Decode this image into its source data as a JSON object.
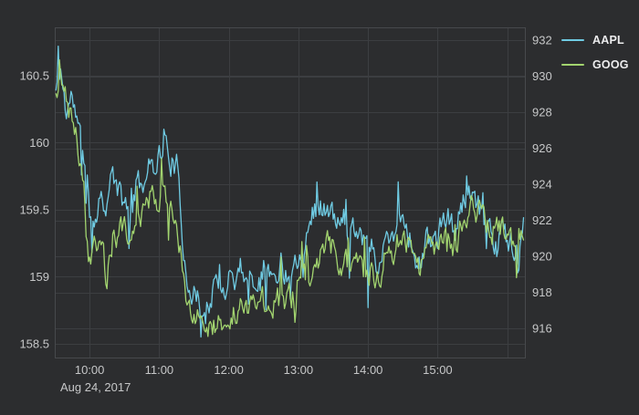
{
  "colors": {
    "background": "#2c2d2f",
    "grid": "#3c3e41",
    "plot_border": "#47494c",
    "tick_text": "#c6c7c8",
    "legend_text": "#ededee",
    "aapl_line": "#6fcbe3",
    "goog_line": "#a2d46f"
  },
  "chart_data": {
    "type": "line",
    "title": "",
    "date_label": "Aug 24, 2017",
    "x_domain": [
      "09:30",
      "16:16"
    ],
    "x_ticks": [
      "10:00",
      "11:00",
      "12:00",
      "13:00",
      "14:00",
      "15:00"
    ],
    "x_grid": [
      "10:00",
      "11:00",
      "12:00",
      "13:00",
      "14:00",
      "15:00",
      "16:00"
    ],
    "ylim_left": [
      158.39,
      160.86
    ],
    "ylim_right": [
      914.33,
      932.71
    ],
    "yticks_left": {
      "labels": [
        "158.5",
        "159",
        "159.5",
        "160",
        "160.5"
      ],
      "values": [
        158.5,
        159,
        159.5,
        160,
        160.5
      ]
    },
    "yticks_right": {
      "labels": [
        "916",
        "918",
        "920",
        "922",
        "924",
        "926",
        "928",
        "930",
        "932"
      ],
      "values": [
        916,
        918,
        920,
        922,
        924,
        926,
        928,
        930,
        932
      ]
    },
    "legend_position": "top-right",
    "grid_on": true,
    "series": [
      {
        "name": "AAPL",
        "axis": "left",
        "color": "#6fcbe3",
        "observed_range": [
          158.55,
          160.74
        ],
        "points": [
          [
            "09:30",
            160.35
          ],
          [
            "09:35",
            160.55
          ],
          [
            "09:40",
            160.22
          ],
          [
            "09:45",
            160.36
          ],
          [
            "09:50",
            160.12
          ],
          [
            "09:55",
            159.88
          ],
          [
            "10:00",
            159.5
          ],
          [
            "10:05",
            159.45
          ],
          [
            "10:10",
            159.62
          ],
          [
            "10:15",
            159.55
          ],
          [
            "10:20",
            159.78
          ],
          [
            "10:25",
            159.62
          ],
          [
            "10:30",
            159.52
          ],
          [
            "10:35",
            159.6
          ],
          [
            "10:40",
            159.68
          ],
          [
            "10:45",
            159.7
          ],
          [
            "10:50",
            159.78
          ],
          [
            "10:55",
            159.85
          ],
          [
            "11:00",
            159.92
          ],
          [
            "11:05",
            160.0
          ],
          [
            "11:10",
            159.88
          ],
          [
            "11:15",
            159.82
          ],
          [
            "11:20",
            159.28
          ],
          [
            "11:25",
            158.98
          ],
          [
            "11:30",
            158.86
          ],
          [
            "11:35",
            158.8
          ],
          [
            "11:40",
            158.72
          ],
          [
            "11:45",
            158.86
          ],
          [
            "11:50",
            158.94
          ],
          [
            "11:55",
            158.88
          ],
          [
            "12:00",
            159.04
          ],
          [
            "12:05",
            158.99
          ],
          [
            "12:10",
            159.08
          ],
          [
            "12:15",
            159.04
          ],
          [
            "12:20",
            158.96
          ],
          [
            "12:25",
            159.04
          ],
          [
            "12:30",
            159.1
          ],
          [
            "12:35",
            159.0
          ],
          [
            "12:40",
            159.05
          ],
          [
            "12:45",
            159.1
          ],
          [
            "12:50",
            159.02
          ],
          [
            "12:55",
            159.1
          ],
          [
            "13:00",
            159.16
          ],
          [
            "13:05",
            159.24
          ],
          [
            "13:10",
            159.45
          ],
          [
            "13:15",
            159.52
          ],
          [
            "13:20",
            159.5
          ],
          [
            "13:25",
            159.54
          ],
          [
            "13:30",
            159.42
          ],
          [
            "13:35",
            159.38
          ],
          [
            "13:40",
            159.44
          ],
          [
            "13:45",
            159.36
          ],
          [
            "13:50",
            159.4
          ],
          [
            "13:55",
            159.32
          ],
          [
            "14:00",
            159.3
          ],
          [
            "14:05",
            159.18
          ],
          [
            "14:10",
            159.08
          ],
          [
            "14:15",
            159.28
          ],
          [
            "14:20",
            159.32
          ],
          [
            "14:25",
            159.4
          ],
          [
            "14:30",
            159.48
          ],
          [
            "14:35",
            159.34
          ],
          [
            "14:40",
            159.16
          ],
          [
            "14:45",
            159.08
          ],
          [
            "14:50",
            159.25
          ],
          [
            "14:55",
            159.3
          ],
          [
            "15:00",
            159.3
          ],
          [
            "15:05",
            159.38
          ],
          [
            "15:10",
            159.44
          ],
          [
            "15:15",
            159.3
          ],
          [
            "15:20",
            159.5
          ],
          [
            "15:25",
            159.6
          ],
          [
            "15:30",
            159.56
          ],
          [
            "15:35",
            159.5
          ],
          [
            "15:40",
            159.42
          ],
          [
            "15:45",
            159.4
          ],
          [
            "15:50",
            159.24
          ],
          [
            "15:55",
            159.34
          ],
          [
            "16:00",
            159.3
          ],
          [
            "16:05",
            159.24
          ],
          [
            "16:10",
            159.18
          ],
          [
            "16:14",
            159.34
          ]
        ],
        "spikes": [
          [
            "09:33",
            160.72
          ],
          [
            "10:02",
            159.18
          ],
          [
            "10:34",
            159.21
          ],
          [
            "11:04",
            160.1
          ],
          [
            "11:40",
            158.65
          ],
          [
            "14:00",
            158.77
          ],
          [
            "15:51",
            159.15
          ],
          [
            "16:10",
            159.05
          ]
        ]
      },
      {
        "name": "GOOG",
        "axis": "right",
        "color": "#a2d46f",
        "observed_range": [
          915.4,
          931.0
        ],
        "points": [
          [
            "09:30",
            928.2
          ],
          [
            "09:35",
            930.0
          ],
          [
            "09:40",
            928.8
          ],
          [
            "09:45",
            927.5
          ],
          [
            "09:50",
            926.2
          ],
          [
            "09:55",
            924.2
          ],
          [
            "10:00",
            919.8
          ],
          [
            "10:05",
            921.0
          ],
          [
            "10:10",
            920.6
          ],
          [
            "10:15",
            918.6
          ],
          [
            "10:20",
            920.9
          ],
          [
            "10:25",
            921.4
          ],
          [
            "10:30",
            921.3
          ],
          [
            "10:35",
            921.0
          ],
          [
            "10:40",
            921.9
          ],
          [
            "10:45",
            922.1
          ],
          [
            "10:50",
            922.6
          ],
          [
            "10:55",
            923.7
          ],
          [
            "11:00",
            923.1
          ],
          [
            "11:05",
            923.4
          ],
          [
            "11:10",
            922.6
          ],
          [
            "11:15",
            922.1
          ],
          [
            "11:20",
            919.2
          ],
          [
            "11:25",
            917.0
          ],
          [
            "11:30",
            916.6
          ],
          [
            "11:35",
            916.3
          ],
          [
            "11:40",
            915.9
          ],
          [
            "11:45",
            916.1
          ],
          [
            "11:50",
            916.5
          ],
          [
            "11:55",
            916.3
          ],
          [
            "12:00",
            917.2
          ],
          [
            "12:05",
            916.9
          ],
          [
            "12:10",
            917.0
          ],
          [
            "12:15",
            917.3
          ],
          [
            "12:20",
            917.0
          ],
          [
            "12:25",
            917.2
          ],
          [
            "12:30",
            917.5
          ],
          [
            "12:35",
            917.2
          ],
          [
            "12:40",
            917.4
          ],
          [
            "12:45",
            917.6
          ],
          [
            "12:50",
            917.5
          ],
          [
            "12:55",
            917.8
          ],
          [
            "13:00",
            918.2
          ],
          [
            "13:05",
            918.6
          ],
          [
            "13:10",
            919.2
          ],
          [
            "13:15",
            919.0
          ],
          [
            "13:20",
            920.8
          ],
          [
            "13:25",
            920.9
          ],
          [
            "13:30",
            920.4
          ],
          [
            "13:35",
            920.0
          ],
          [
            "13:40",
            919.6
          ],
          [
            "13:45",
            919.4
          ],
          [
            "13:50",
            919.5
          ],
          [
            "13:55",
            919.1
          ],
          [
            "14:00",
            919.2
          ],
          [
            "14:05",
            918.8
          ],
          [
            "14:10",
            918.5
          ],
          [
            "14:15",
            919.9
          ],
          [
            "14:20",
            920.3
          ],
          [
            "14:25",
            920.8
          ],
          [
            "14:30",
            921.4
          ],
          [
            "14:35",
            920.6
          ],
          [
            "14:40",
            920.0
          ],
          [
            "14:45",
            919.5
          ],
          [
            "14:50",
            920.3
          ],
          [
            "14:55",
            920.5
          ],
          [
            "15:00",
            920.8
          ],
          [
            "15:05",
            920.8
          ],
          [
            "15:10",
            921.2
          ],
          [
            "15:15",
            920.6
          ],
          [
            "15:20",
            921.7
          ],
          [
            "15:25",
            922.4
          ],
          [
            "15:30",
            923.0
          ],
          [
            "15:35",
            922.6
          ],
          [
            "15:40",
            922.0
          ],
          [
            "15:45",
            921.9
          ],
          [
            "15:50",
            921.3
          ],
          [
            "15:55",
            921.4
          ],
          [
            "16:00",
            921.6
          ],
          [
            "16:05",
            921.0
          ],
          [
            "16:10",
            921.4
          ],
          [
            "16:14",
            921.9
          ]
        ],
        "spikes": [
          [
            "09:34",
            930.9
          ],
          [
            "10:15",
            918.2
          ],
          [
            "11:42",
            915.55
          ],
          [
            "14:10",
            918.35
          ],
          [
            "15:30",
            923.2
          ]
        ]
      }
    ]
  }
}
